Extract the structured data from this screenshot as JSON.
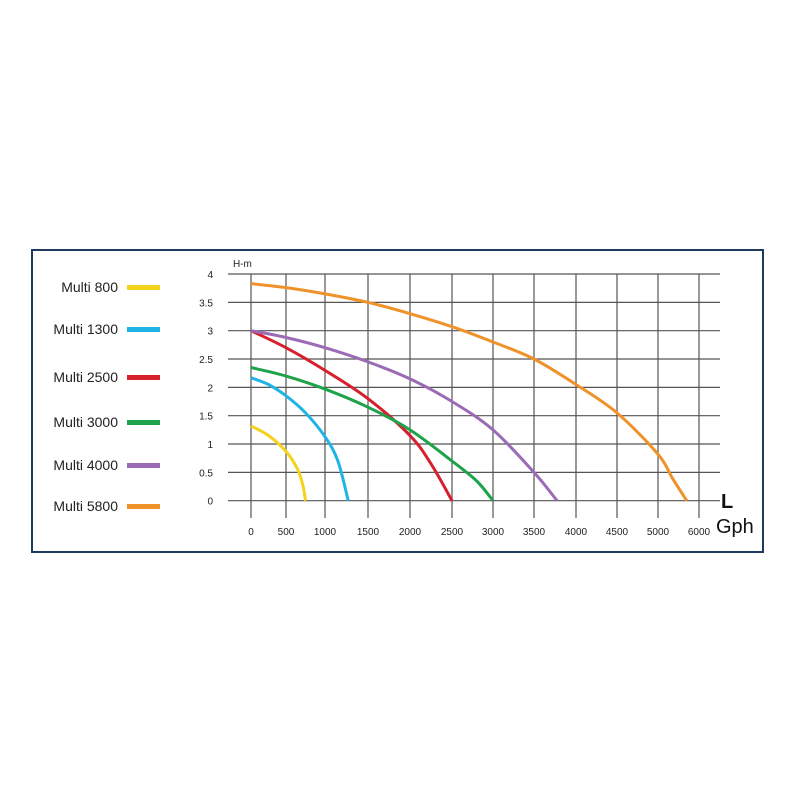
{
  "chart_data": {
    "type": "line",
    "ylabel": "H-m",
    "xlabel_top": "L",
    "xlabel_bottom": "Gph",
    "x_ticks": [
      0,
      500,
      1000,
      1500,
      2000,
      2500,
      3000,
      3500,
      4000,
      4500,
      5000,
      6000
    ],
    "x_tick_labels": [
      "0",
      "500",
      "1000",
      "1500",
      "2000",
      "2500",
      "3000",
      "3500",
      "4000",
      "4500",
      "5000",
      "6000"
    ],
    "y_ticks": [
      0,
      0.5,
      1,
      1.5,
      2,
      2.5,
      3,
      3.5,
      4
    ],
    "y_tick_labels": [
      "0",
      "0.5",
      "1",
      "1.5",
      "2",
      "2.5",
      "3",
      "3.5",
      "4"
    ],
    "ylim": [
      0,
      4
    ],
    "grid": true,
    "legend_placement": "left",
    "series": [
      {
        "name": "Multi 800",
        "color": "#f5d31c",
        "x": [
          0,
          250,
          500,
          650,
          720,
          750
        ],
        "y": [
          1.32,
          1.15,
          0.87,
          0.55,
          0.25,
          0
        ]
      },
      {
        "name": "Multi 1300",
        "color": "#1fb3e6",
        "x": [
          0,
          250,
          500,
          750,
          1000,
          1150,
          1270
        ],
        "y": [
          2.17,
          2.05,
          1.85,
          1.55,
          1.13,
          0.7,
          0
        ]
      },
      {
        "name": "Multi 2500",
        "color": "#d7202e",
        "x": [
          0,
          500,
          1000,
          1500,
          2000,
          2250,
          2500
        ],
        "y": [
          3.0,
          2.7,
          2.3,
          1.8,
          1.15,
          0.65,
          0
        ]
      },
      {
        "name": "Multi 3000",
        "color": "#1ea24a",
        "x": [
          0,
          500,
          1000,
          1500,
          2000,
          2500,
          2800,
          3000
        ],
        "y": [
          2.35,
          2.2,
          1.97,
          1.65,
          1.25,
          0.7,
          0.35,
          0
        ]
      },
      {
        "name": "Multi 4000",
        "color": "#9b6bb5",
        "x": [
          0,
          500,
          1000,
          1500,
          2000,
          2500,
          3000,
          3500,
          3775
        ],
        "y": [
          3.0,
          2.88,
          2.7,
          2.45,
          2.15,
          1.75,
          1.25,
          0.5,
          0
        ]
      },
      {
        "name": "Multi 5800",
        "color": "#f0922a",
        "x": [
          0,
          500,
          1000,
          1500,
          2000,
          2500,
          3000,
          3500,
          4000,
          4500,
          5000,
          5350,
          5700
        ],
        "y": [
          3.83,
          3.76,
          3.65,
          3.5,
          3.3,
          3.07,
          2.8,
          2.5,
          2.05,
          1.55,
          0.82,
          0.4,
          0
        ]
      }
    ]
  }
}
